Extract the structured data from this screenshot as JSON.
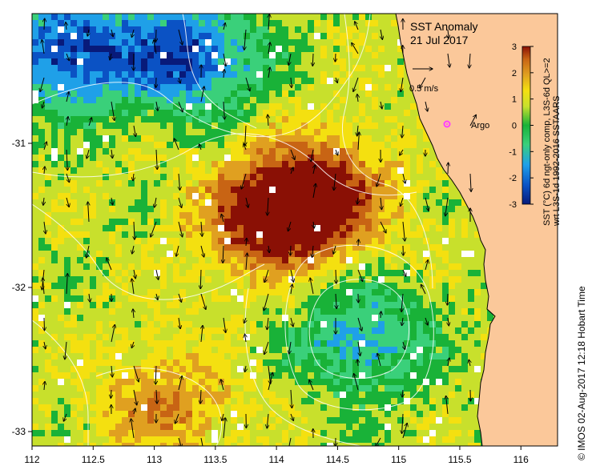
{
  "map": {
    "title_line1": "SST Anomaly",
    "title_line2": "21 Jul 2017",
    "scale_arrow_label": "0.5 m/s",
    "float_label": "Argo",
    "colorbar_label_line1": "SST (°C) 6d ngt-only comp, L3S-6d QL>=2",
    "colorbar_label_line2": "wrt L3S-1d 1992-2016 SSTAARS",
    "credit": "©  IMOS 02-Aug-2017 12:18 Hobart Time",
    "x_ticks": [
      "112",
      "112.5",
      "113",
      "113.5",
      "114",
      "114.5",
      "115",
      "115.5",
      "116"
    ],
    "y_ticks": [
      "-31",
      "-32",
      "-33"
    ],
    "colorbar_ticks": [
      "3",
      "2",
      "1",
      "0",
      "-1",
      "-2",
      "-3"
    ],
    "colors": {
      "land": "#fbc89a",
      "float_marker": "#ff40ff",
      "contour": "#ffffff",
      "arrow": "#000000"
    }
  },
  "chart_data": {
    "type": "heatmap",
    "variable": "SST anomaly",
    "units": "°C",
    "xlim": [
      112,
      116.3
    ],
    "ylim": [
      -33.1,
      -30.1
    ],
    "color_range": [
      -3,
      3
    ],
    "colormap": [
      "#081a7a",
      "#0b52c4",
      "#1fa0e8",
      "#3ad07a",
      "#19b238",
      "#c8e02c",
      "#f4e010",
      "#e0a020",
      "#c86414",
      "#8a1005"
    ],
    "features": [
      {
        "kind": "warm anomaly",
        "lon": 113.95,
        "lat": -31.5,
        "value": 2.8
      },
      {
        "kind": "warm anomaly",
        "lon": 114.4,
        "lat": -31.35,
        "value": 2.3
      },
      {
        "kind": "warm anomaly",
        "lon": 113.1,
        "lat": -32.8,
        "value": 1.6
      },
      {
        "kind": "cool anomaly",
        "lon": 112.3,
        "lat": -30.35,
        "value": -2.4
      },
      {
        "kind": "cool anomaly",
        "lon": 113.3,
        "lat": -30.4,
        "value": -2.3
      },
      {
        "kind": "cool eddy",
        "lon": 114.7,
        "lat": -32.35,
        "value": -1.4
      }
    ],
    "argo_float": {
      "lon": 115.35,
      "lat": -30.85
    }
  }
}
